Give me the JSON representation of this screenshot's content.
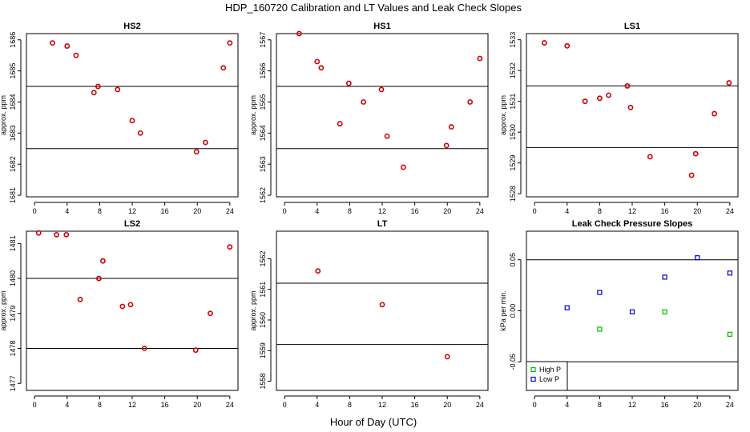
{
  "figure": {
    "title": "HDP_160720  Calibration and LT Values and Leak Check Slopes",
    "xlabel": "Hour of Day (UTC)"
  },
  "chart_data": [
    {
      "type": "scatter",
      "title": "HS2",
      "ylabel": "approx. ppm",
      "xlim": [
        -1,
        25
      ],
      "ylim": [
        1680.95,
        1686.2
      ],
      "xticks": [
        0,
        4,
        8,
        12,
        16,
        20,
        24
      ],
      "yticks": [
        1681,
        1682,
        1683,
        1684,
        1685,
        1686
      ],
      "hlines": [
        1684.5,
        1682.5
      ],
      "series": [
        {
          "color": "#cc0000",
          "marker": "circle",
          "x": [
            2.2,
            4.0,
            5.1,
            7.3,
            7.8,
            10.2,
            12.0,
            13.0,
            19.9,
            21.0,
            23.2,
            24.0
          ],
          "y": [
            1685.9,
            1685.8,
            1685.5,
            1684.3,
            1684.5,
            1684.4,
            1683.4,
            1683.0,
            1682.4,
            1682.7,
            1685.1,
            1685.9
          ]
        }
      ]
    },
    {
      "type": "scatter",
      "title": "HS1",
      "ylabel": "approx. ppm",
      "xlim": [
        -1,
        25
      ],
      "ylim": [
        1561.95,
        1567.2
      ],
      "xticks": [
        0,
        4,
        8,
        12,
        16,
        20,
        24
      ],
      "yticks": [
        1562,
        1563,
        1564,
        1565,
        1566,
        1567
      ],
      "hlines": [
        1565.5,
        1563.5
      ],
      "series": [
        {
          "color": "#cc0000",
          "marker": "circle",
          "x": [
            1.8,
            4.0,
            4.5,
            6.8,
            7.9,
            9.7,
            11.9,
            12.6,
            14.6,
            19.9,
            20.5,
            22.8,
            24.0
          ],
          "y": [
            1567.2,
            1566.3,
            1566.1,
            1564.3,
            1565.6,
            1565.0,
            1565.4,
            1563.9,
            1562.9,
            1563.6,
            1564.2,
            1565.0,
            1566.4
          ]
        }
      ]
    },
    {
      "type": "scatter",
      "title": "LS1",
      "ylabel": "approx. ppm",
      "xlim": [
        -1,
        25
      ],
      "ylim": [
        1527.9,
        1533.2
      ],
      "xticks": [
        0,
        4,
        8,
        12,
        16,
        20,
        24
      ],
      "yticks": [
        1528,
        1529,
        1530,
        1531,
        1532,
        1533
      ],
      "hlines": [
        1531.5,
        1529.5
      ],
      "series": [
        {
          "color": "#cc0000",
          "marker": "circle",
          "x": [
            1.2,
            4.0,
            6.2,
            8.0,
            9.1,
            11.4,
            11.8,
            14.2,
            19.3,
            19.8,
            22.1,
            23.9
          ],
          "y": [
            1532.9,
            1532.8,
            1531.0,
            1531.1,
            1531.2,
            1531.5,
            1530.8,
            1529.2,
            1528.6,
            1529.3,
            1530.6,
            1531.6
          ]
        }
      ]
    },
    {
      "type": "scatter",
      "title": "LS2",
      "ylabel": "approx. ppm",
      "xlim": [
        -1,
        25
      ],
      "ylim": [
        1476.8,
        1481.35
      ],
      "xticks": [
        0,
        4,
        8,
        12,
        16,
        20,
        24
      ],
      "yticks": [
        1477,
        1478,
        1479,
        1480,
        1481
      ],
      "hlines": [
        1480.0,
        1478.0
      ],
      "series": [
        {
          "color": "#cc0000",
          "marker": "circle",
          "x": [
            0.5,
            2.7,
            3.9,
            5.6,
            7.9,
            8.4,
            10.8,
            11.8,
            13.5,
            19.8,
            21.6,
            24.0
          ],
          "y": [
            1481.3,
            1481.25,
            1481.25,
            1479.4,
            1480.0,
            1480.5,
            1479.2,
            1479.25,
            1478.0,
            1477.95,
            1479.0,
            1480.9
          ]
        }
      ]
    },
    {
      "type": "scatter",
      "title": "LT",
      "ylabel": "approx. ppm",
      "xlim": [
        -1,
        25
      ],
      "ylim": [
        1557.7,
        1562.9
      ],
      "xticks": [
        0,
        4,
        8,
        12,
        16,
        20,
        24
      ],
      "yticks": [
        1558,
        1559,
        1560,
        1561,
        1562
      ],
      "hlines": [
        1561.2,
        1559.2
      ],
      "series": [
        {
          "color": "#cc0000",
          "marker": "circle",
          "x": [
            4.1,
            12.0,
            20.0
          ],
          "y": [
            1561.6,
            1560.5,
            1558.8
          ]
        }
      ]
    },
    {
      "type": "scatter",
      "title": "Leak Check Pressure Slopes",
      "ylabel": "kPa per min.",
      "xlim": [
        -1,
        25
      ],
      "ylim": [
        -0.078,
        0.078
      ],
      "xticks": [
        0,
        4,
        8,
        12,
        16,
        20,
        24
      ],
      "yticks": [
        -0.05,
        0.0,
        0.05
      ],
      "ytick_labels": [
        "-0.05",
        "0.00",
        "0.05"
      ],
      "hlines": [
        0.05,
        -0.05
      ],
      "legend": "bottom-left",
      "series": [
        {
          "name": "High P",
          "color": "#00bb00",
          "marker": "square",
          "x": [
            8.0,
            16.0,
            24.0
          ],
          "y": [
            -0.018,
            -0.001,
            -0.023
          ]
        },
        {
          "name": "Low P",
          "color": "#0000cc",
          "marker": "square",
          "x": [
            4.0,
            8.0,
            12.0,
            16.0,
            20.0,
            24.0
          ],
          "y": [
            0.003,
            0.018,
            -0.001,
            0.033,
            0.052,
            0.037
          ]
        }
      ]
    }
  ]
}
